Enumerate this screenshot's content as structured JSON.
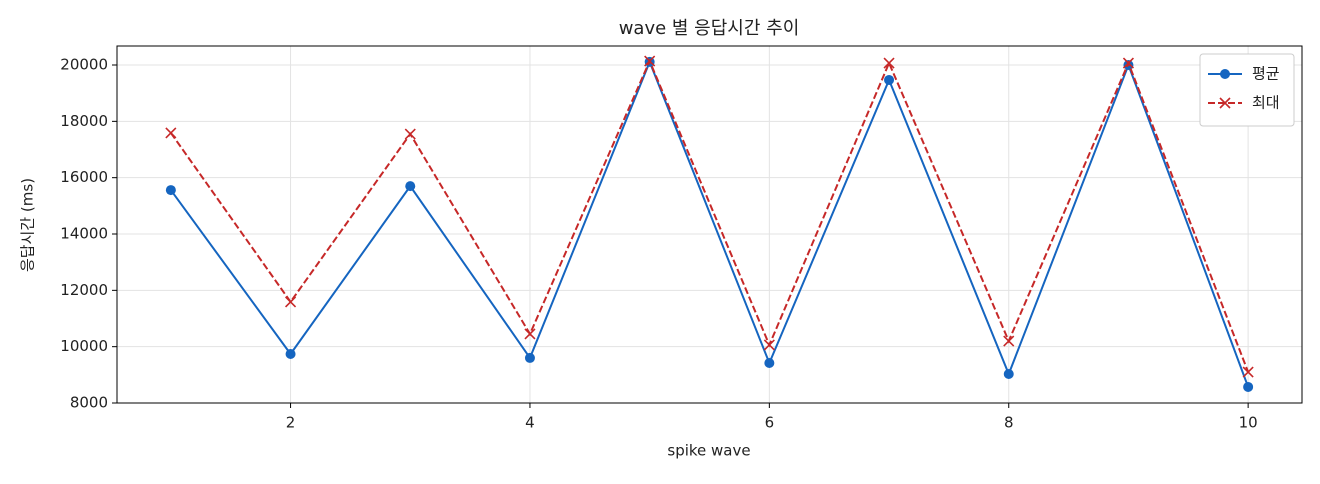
{
  "chart_data": {
    "type": "line",
    "title": "wave 별 응답시간 추이",
    "x_label": "spike wave",
    "y_label": "응답시간 (ms)",
    "x": [
      1,
      2,
      3,
      4,
      5,
      6,
      7,
      8,
      9,
      10
    ],
    "series": [
      {
        "name": "평균",
        "color": "#1565c0",
        "marker": "circle",
        "dash": "solid",
        "values": [
          15560,
          9740,
          15700,
          9600,
          20110,
          9420,
          19470,
          9030,
          20000,
          8570
        ]
      },
      {
        "name": "최대",
        "color": "#c62828",
        "marker": "x",
        "dash": "dashed",
        "values": [
          17590,
          11590,
          17550,
          10450,
          20140,
          10060,
          20070,
          10200,
          20070,
          9100
        ]
      }
    ],
    "xlim": [
      0.55,
      10.45
    ],
    "xticks": [
      2,
      4,
      6,
      8,
      10
    ],
    "ylim": [
      8000,
      20675
    ],
    "yticks": [
      8000,
      10000,
      12000,
      14000,
      16000,
      18000,
      20000
    ],
    "grid": true,
    "legend": "upper-right"
  }
}
